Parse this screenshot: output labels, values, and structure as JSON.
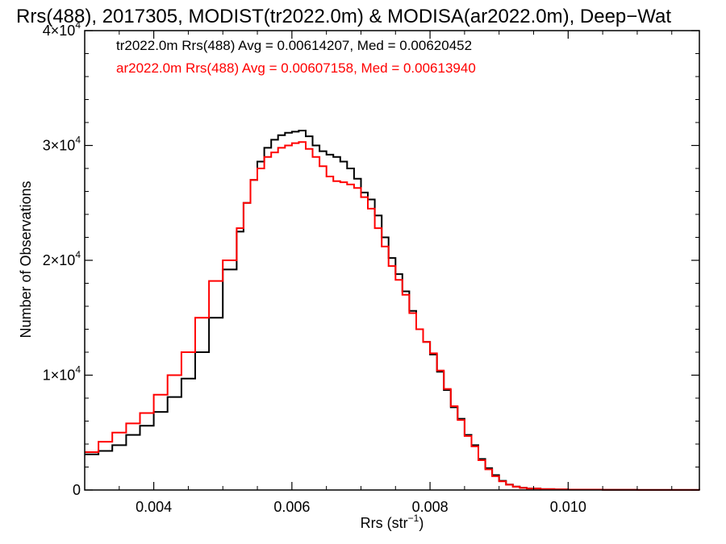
{
  "chart_data": {
    "type": "line",
    "title": "Rrs(488), 2017305, MODIST(tr2022.0m) & MODISA(ar2022.0m), Deep−Wat",
    "xlabel": {
      "main": "Rrs (str",
      "sup": "−1",
      "end": ")"
    },
    "ylabel": "Number of Observations",
    "xlim": [
      0.003,
      0.0119
    ],
    "ylim": [
      0,
      40000
    ],
    "x_ticks": [
      0.004,
      0.006,
      0.008,
      0.01
    ],
    "x_tick_labels": [
      "0.004",
      "0.006",
      "0.008",
      "0.010"
    ],
    "y_ticks": [
      0,
      10000,
      20000,
      30000,
      40000
    ],
    "y_tick_labels": [
      {
        "base": "0",
        "exp": ""
      },
      {
        "base": "1×10",
        "exp": "4"
      },
      {
        "base": "2×10",
        "exp": "4"
      },
      {
        "base": "3×10",
        "exp": "4"
      },
      {
        "base": "4×10",
        "exp": "4"
      }
    ],
    "grid": false,
    "legend_position": "top-left",
    "series": [
      {
        "name": "tr2022.0m Rrs(488) Avg = 0.00614207, Med = 0.00620452",
        "color": "#000000",
        "step": true,
        "x": [
          0.003,
          0.0032,
          0.0034,
          0.0036,
          0.0038,
          0.004,
          0.0042,
          0.0044,
          0.0046,
          0.0048,
          0.005,
          0.0052,
          0.0053,
          0.0054,
          0.0055,
          0.0056,
          0.0057,
          0.0058,
          0.0059,
          0.006,
          0.0061,
          0.0062,
          0.0063,
          0.0064,
          0.0065,
          0.0066,
          0.0067,
          0.0068,
          0.0069,
          0.007,
          0.0071,
          0.0072,
          0.0073,
          0.0074,
          0.0075,
          0.0076,
          0.0077,
          0.0078,
          0.0079,
          0.008,
          0.0081,
          0.0082,
          0.0083,
          0.0084,
          0.0085,
          0.0086,
          0.0087,
          0.0088,
          0.0089,
          0.009,
          0.0091,
          0.0092,
          0.0093,
          0.0094,
          0.0096,
          0.0098,
          0.01,
          0.0105,
          0.011,
          0.0119
        ],
        "y": [
          3100,
          3400,
          3900,
          4800,
          5600,
          6800,
          8100,
          9700,
          12000,
          15000,
          19200,
          22500,
          25000,
          27000,
          28600,
          29800,
          30500,
          30900,
          31100,
          31200,
          31300,
          30800,
          30000,
          29500,
          29200,
          29000,
          28600,
          28000,
          27100,
          25900,
          25300,
          23900,
          22000,
          20200,
          18800,
          17300,
          15600,
          14000,
          12900,
          11800,
          10300,
          8700,
          7200,
          6200,
          4800,
          3900,
          2700,
          1900,
          1300,
          800,
          480,
          300,
          190,
          130,
          80,
          50,
          35,
          20,
          10,
          0
        ]
      },
      {
        "name": "ar2022.0m Rrs(488) Avg = 0.00607158, Med = 0.00613940",
        "color": "#ff0000",
        "step": true,
        "x": [
          0.003,
          0.0032,
          0.0034,
          0.0036,
          0.0038,
          0.004,
          0.0042,
          0.0044,
          0.0046,
          0.0048,
          0.005,
          0.0052,
          0.0053,
          0.0054,
          0.0055,
          0.0056,
          0.0057,
          0.0058,
          0.0059,
          0.006,
          0.0061,
          0.0062,
          0.0063,
          0.0064,
          0.0065,
          0.0066,
          0.0067,
          0.0068,
          0.0069,
          0.007,
          0.0071,
          0.0072,
          0.0073,
          0.0074,
          0.0075,
          0.0076,
          0.0077,
          0.0078,
          0.0079,
          0.008,
          0.0081,
          0.0082,
          0.0083,
          0.0084,
          0.0085,
          0.0086,
          0.0087,
          0.0088,
          0.0089,
          0.009,
          0.0091,
          0.0092,
          0.0093,
          0.0094,
          0.0096,
          0.0098,
          0.01,
          0.0105,
          0.011,
          0.0119
        ],
        "y": [
          3300,
          4200,
          5000,
          5800,
          6700,
          8300,
          10000,
          12000,
          15000,
          18200,
          20000,
          22800,
          25000,
          27000,
          28000,
          29000,
          29400,
          29800,
          30000,
          30200,
          30300,
          29700,
          29000,
          28200,
          27300,
          26900,
          26800,
          26600,
          26300,
          25500,
          24500,
          22800,
          21200,
          19500,
          18300,
          17000,
          15400,
          14000,
          12900,
          11900,
          10400,
          8800,
          7300,
          6100,
          4700,
          3800,
          2600,
          1800,
          1200,
          760,
          460,
          290,
          180,
          120,
          75,
          50,
          35,
          20,
          10,
          0
        ]
      }
    ]
  }
}
